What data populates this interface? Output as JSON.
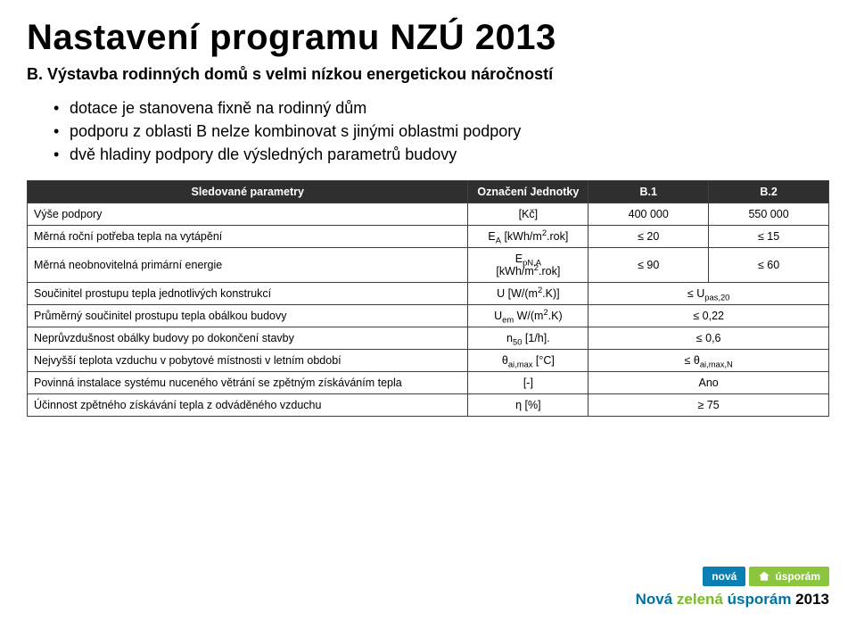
{
  "title": "Nastavení programu NZÚ 2013",
  "subtitle": "B. Výstavba rodinných domů s velmi nízkou energetickou náročností",
  "bullets": [
    "dotace je stanovena fixně na rodinný dům",
    "podporu z oblasti B nelze kombinovat s jinými oblastmi podpory",
    "dvě hladiny podpory dle výsledných parametrů budovy"
  ],
  "table": {
    "header": {
      "param": "Sledované parametry",
      "unit": "Označení Jednotky",
      "b1": "B.1",
      "b2": "B.2"
    },
    "rows": [
      {
        "param": "Výše podpory",
        "unitHtml": "[Kč]",
        "b1": "400 000",
        "b2": "550 000"
      },
      {
        "param": "Měrná roční potřeba tepla na vytápění",
        "unitHtml": "E<sub>A</sub> [kWh/m<sup>2</sup>.rok]",
        "b1": "≤ 20",
        "b2": "≤ 15"
      },
      {
        "param": "Měrná neobnovitelná primární energie",
        "unitHtml": "E<sub>pN,A</sub><br>[kWh/m<sup>2</sup>.rok]",
        "b1": "≤ 90",
        "b2": "≤ 60"
      },
      {
        "param": "Součinitel prostupu tepla jednotlivých konstrukcí",
        "unitHtml": "U  [W/(m<sup>2</sup>.K)]",
        "merged": "≤ U<sub>pas,20</sub>"
      },
      {
        "param": "Průměrný součinitel prostupu tepla obálkou budovy",
        "unitHtml": "U<sub>em</sub>  W/(m<sup>2</sup>.K)",
        "merged": "≤ 0,22"
      },
      {
        "param": "Neprůvzdušnost obálky budovy po dokončení stavby",
        "unitHtml": "n<sub>50</sub>  [1/h].",
        "merged": "≤ 0,6"
      },
      {
        "param": "Nejvyšší teplota vzduchu v pobytové místnosti v letním období",
        "unitHtml": "θ<sub>ai,max</sub> [°C]",
        "merged": "≤ θ<sub>ai,max,N</sub>"
      },
      {
        "param": "Povinná instalace systému nuceného větrání se zpětným získáváním tepla",
        "unitHtml": "[-]",
        "merged": "Ano"
      },
      {
        "param": "Účinnost zpětného získávání tepla z odváděného vzduchu",
        "unitHtml": "η [%]",
        "merged": "≥ 75"
      }
    ]
  },
  "logo": {
    "chip1": "nová",
    "chip2": "úsporám",
    "line_nova": "Nová",
    "line_zel": "zelená",
    "line_usp": "úsporám",
    "line_year": "2013"
  },
  "colors": {
    "header_bg": "#2f2f2f",
    "header_fg": "#ffffff",
    "border": "#403f3f",
    "chip_blue": "#0a7fb4",
    "chip_green": "#8cc63f",
    "brand_blue": "#0072a0",
    "brand_green": "#7db828"
  }
}
